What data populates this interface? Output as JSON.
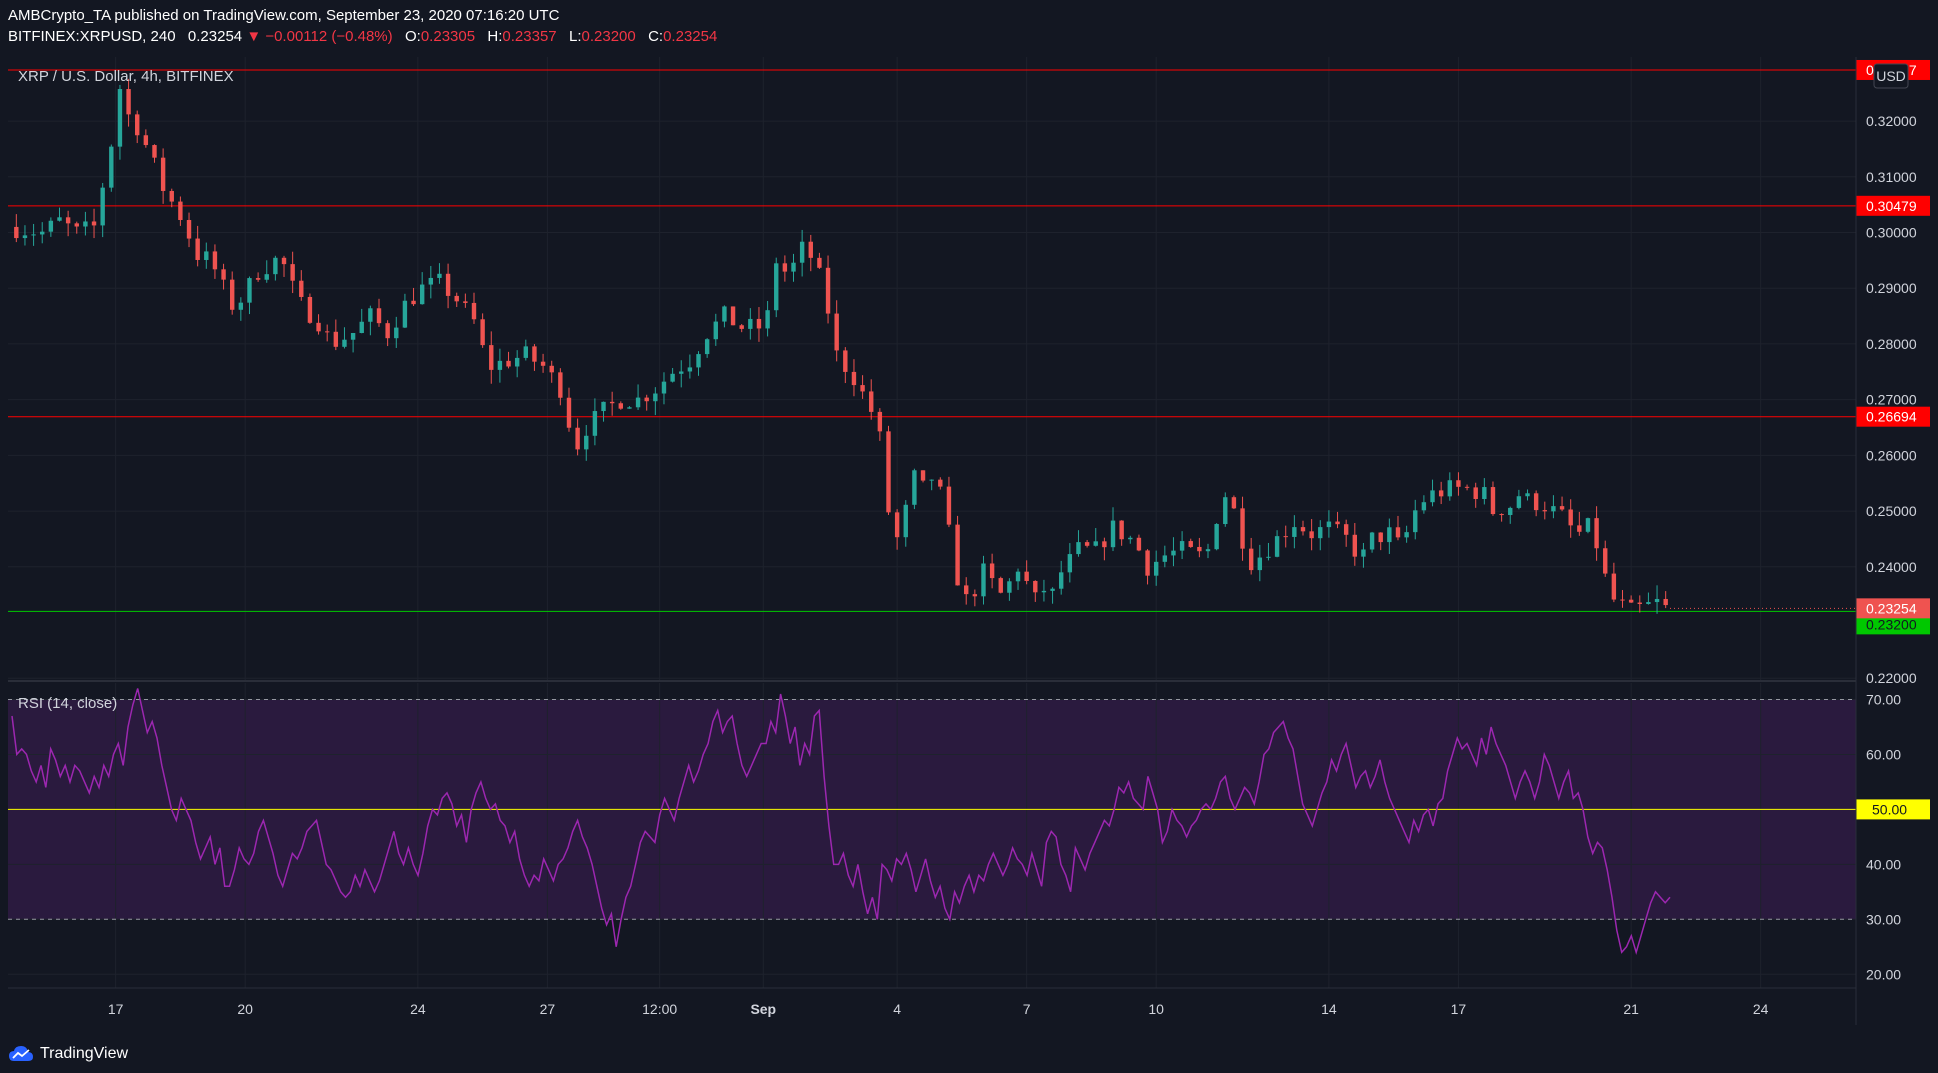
{
  "header": {
    "publisher_line": "AMBCrypto_TA published on TradingView.com, September 23, 2020 07:16:20 UTC",
    "symbol": "BITFINEX:XRPUSD, 240",
    "last": "0.23254",
    "change": "▼ −0.00112 (−0.48%)",
    "o_label": "O:",
    "o_val": "0.23305",
    "h_label": "H:",
    "h_val": "0.23357",
    "l_label": "L:",
    "l_val": "0.23200",
    "c_label": "C:",
    "c_val": "0.23254"
  },
  "colors": {
    "background": "#131722",
    "up": "#26a69a",
    "down": "#ef5350",
    "resistance": "#ff0000",
    "support": "#00c800",
    "rsi_line": "#9c27b0",
    "rsi_band": "#2a1a3e",
    "midline": "#ffff00"
  },
  "footer": {
    "brand": "TradingView"
  },
  "chart_data": [
    {
      "type": "candlestick",
      "title": "XRP / U.S. Dollar, 4h, BITFINEX",
      "currency_label": "USD",
      "ylim": [
        0.2195,
        0.3315
      ],
      "y_ticks": [
        "0.32000",
        "0.31000",
        "0.30000",
        "0.29000",
        "0.28000",
        "0.27000",
        "0.26000",
        "0.25000",
        "0.24000",
        "0.22000"
      ],
      "y_tick_values": [
        0.32,
        0.31,
        0.3,
        0.29,
        0.28,
        0.27,
        0.26,
        0.25,
        0.24,
        0.22
      ],
      "x_ticks": [
        "17",
        "20",
        "24",
        "27",
        "12:00",
        "Sep",
        "4",
        "7",
        "10",
        "14",
        "17",
        "21",
        "24"
      ],
      "x_tick_index": [
        24,
        54,
        94,
        124,
        150,
        174,
        205,
        235,
        265,
        305,
        335,
        375,
        405
      ],
      "horizontal_levels": [
        {
          "label": "0.32917",
          "value": 0.32917,
          "kind": "resistance"
        },
        {
          "label": "0.30479",
          "value": 0.30479,
          "kind": "resistance"
        },
        {
          "label": "0.26694",
          "value": 0.26694,
          "kind": "resistance"
        },
        {
          "label": "0.23200",
          "value": 0.232,
          "kind": "support"
        }
      ],
      "last_price": {
        "label": "0.23254",
        "value": 0.23254
      },
      "price_path": [
        [
          0,
          0.301
        ],
        [
          8,
          0.3
        ],
        [
          12,
          0.302
        ],
        [
          16,
          0.3
        ],
        [
          20,
          0.301
        ],
        [
          24,
          0.316
        ],
        [
          26,
          0.326
        ],
        [
          28,
          0.321
        ],
        [
          30,
          0.319
        ],
        [
          33,
          0.314
        ],
        [
          36,
          0.308
        ],
        [
          40,
          0.303
        ],
        [
          44,
          0.296
        ],
        [
          47,
          0.295
        ],
        [
          50,
          0.29
        ],
        [
          52,
          0.287
        ],
        [
          54,
          0.288
        ],
        [
          58,
          0.293
        ],
        [
          62,
          0.295
        ],
        [
          64,
          0.294
        ],
        [
          66,
          0.29
        ],
        [
          68,
          0.287
        ],
        [
          72,
          0.284
        ],
        [
          75,
          0.28
        ],
        [
          80,
          0.282
        ],
        [
          84,
          0.285
        ],
        [
          88,
          0.282
        ],
        [
          92,
          0.287
        ],
        [
          96,
          0.29
        ],
        [
          100,
          0.291
        ],
        [
          104,
          0.288
        ],
        [
          108,
          0.284
        ],
        [
          110,
          0.279
        ],
        [
          112,
          0.276
        ],
        [
          116,
          0.277
        ],
        [
          120,
          0.278
        ],
        [
          124,
          0.276
        ],
        [
          128,
          0.272
        ],
        [
          130,
          0.266
        ],
        [
          132,
          0.262
        ],
        [
          134,
          0.265
        ],
        [
          138,
          0.268
        ],
        [
          142,
          0.27
        ],
        [
          146,
          0.27
        ],
        [
          150,
          0.272
        ],
        [
          154,
          0.275
        ],
        [
          158,
          0.277
        ],
        [
          162,
          0.282
        ],
        [
          166,
          0.285
        ],
        [
          170,
          0.283
        ],
        [
          174,
          0.283
        ],
        [
          176,
          0.285
        ],
        [
          178,
          0.295
        ],
        [
          180,
          0.293
        ],
        [
          182,
          0.294
        ],
        [
          184,
          0.297
        ],
        [
          187,
          0.295
        ],
        [
          190,
          0.286
        ],
        [
          192,
          0.278
        ],
        [
          194,
          0.276
        ],
        [
          196,
          0.274
        ],
        [
          198,
          0.271
        ],
        [
          200,
          0.268
        ],
        [
          202,
          0.263
        ],
        [
          204,
          0.25
        ],
        [
          206,
          0.245
        ],
        [
          208,
          0.25
        ],
        [
          210,
          0.256
        ],
        [
          212,
          0.254
        ],
        [
          214,
          0.256
        ],
        [
          216,
          0.253
        ],
        [
          218,
          0.246
        ],
        [
          220,
          0.238
        ],
        [
          222,
          0.234
        ],
        [
          224,
          0.236
        ],
        [
          226,
          0.239
        ],
        [
          228,
          0.237
        ],
        [
          230,
          0.235
        ],
        [
          232,
          0.237
        ],
        [
          234,
          0.24
        ],
        [
          236,
          0.237
        ],
        [
          238,
          0.234
        ],
        [
          240,
          0.236
        ],
        [
          242,
          0.235
        ],
        [
          244,
          0.239
        ],
        [
          248,
          0.243
        ],
        [
          252,
          0.243
        ],
        [
          256,
          0.247
        ],
        [
          260,
          0.245
        ],
        [
          262,
          0.243
        ],
        [
          264,
          0.24
        ],
        [
          268,
          0.242
        ],
        [
          272,
          0.243
        ],
        [
          276,
          0.242
        ],
        [
          278,
          0.243
        ],
        [
          280,
          0.249
        ],
        [
          282,
          0.253
        ],
        [
          284,
          0.25
        ],
        [
          286,
          0.245
        ],
        [
          288,
          0.241
        ],
        [
          290,
          0.242
        ],
        [
          294,
          0.245
        ],
        [
          298,
          0.248
        ],
        [
          302,
          0.246
        ],
        [
          306,
          0.247
        ],
        [
          310,
          0.245
        ],
        [
          312,
          0.243
        ],
        [
          314,
          0.242
        ],
        [
          316,
          0.245
        ],
        [
          320,
          0.246
        ],
        [
          322,
          0.244
        ],
        [
          324,
          0.246
        ],
        [
          326,
          0.25
        ],
        [
          328,
          0.252
        ],
        [
          330,
          0.253
        ],
        [
          334,
          0.254
        ],
        [
          338,
          0.254
        ],
        [
          342,
          0.253
        ],
        [
          344,
          0.25
        ],
        [
          348,
          0.251
        ],
        [
          350,
          0.253
        ],
        [
          352,
          0.252
        ],
        [
          356,
          0.251
        ],
        [
          360,
          0.249
        ],
        [
          362,
          0.247
        ],
        [
          364,
          0.246
        ],
        [
          366,
          0.247
        ],
        [
          368,
          0.244
        ],
        [
          370,
          0.238
        ],
        [
          372,
          0.234
        ],
        [
          374,
          0.233
        ],
        [
          376,
          0.232
        ],
        [
          378,
          0.2325
        ],
        [
          380,
          0.233
        ],
        [
          382,
          0.2335
        ],
        [
          384,
          0.2325
        ]
      ]
    },
    {
      "type": "line",
      "title": "RSI (14, close)",
      "ylim": [
        17.5,
        73.0
      ],
      "y_ticks": [
        "70.00",
        "60.00",
        "50.00",
        "40.00",
        "30.00",
        "20.00"
      ],
      "y_tick_values": [
        70,
        60,
        50,
        40,
        30,
        20
      ],
      "bands": {
        "upper": 70,
        "lower": 30,
        "middle": 50
      },
      "middle_label": "50.00",
      "series": [
        {
          "name": "",
          "x_end_index": 384,
          "values": [
            67,
            60,
            61,
            60,
            57,
            55,
            58,
            54,
            61,
            59,
            56,
            58,
            55,
            58,
            57,
            55,
            53,
            56,
            54,
            58,
            56,
            60,
            62,
            58,
            65,
            69,
            72,
            68,
            64,
            66,
            63,
            58,
            54,
            50,
            48,
            52,
            50,
            48,
            44,
            41,
            43,
            45,
            40,
            43,
            36,
            36,
            39,
            43,
            41,
            40,
            42,
            46,
            48,
            45,
            42,
            38,
            36,
            39,
            42,
            41,
            43,
            46,
            47,
            48,
            44,
            40,
            39,
            37,
            35,
            34,
            35,
            38,
            36,
            39,
            37,
            35,
            37,
            40,
            43,
            46,
            42,
            40,
            43,
            40,
            38,
            42,
            47,
            50,
            49,
            52,
            53,
            51,
            47,
            49,
            44,
            50,
            53,
            55,
            52,
            50,
            51,
            48,
            47,
            44,
            46,
            41,
            38,
            36,
            38,
            37,
            41,
            39,
            37,
            40,
            41,
            43,
            46,
            48,
            45,
            43,
            40,
            36,
            32,
            29,
            31,
            25,
            30,
            34,
            36,
            40,
            44,
            46,
            45,
            44,
            49,
            52,
            50,
            48,
            52,
            55,
            58,
            55,
            57,
            60,
            62,
            66,
            68,
            64,
            66,
            67,
            62,
            58,
            56,
            58,
            60,
            62,
            62,
            66,
            64,
            71,
            67,
            62,
            65,
            58,
            62,
            60,
            67,
            68,
            56,
            47,
            40,
            40,
            42,
            38,
            36,
            40,
            35,
            31,
            34,
            30,
            40,
            39,
            37,
            41,
            40,
            42,
            39,
            35,
            38,
            41,
            37,
            34,
            36,
            32,
            30,
            35,
            33,
            36,
            38,
            35,
            38,
            37,
            40,
            42,
            40,
            38,
            40,
            43,
            41,
            40,
            38,
            42,
            39,
            36,
            44,
            46,
            45,
            40,
            38,
            35,
            43,
            41,
            39,
            42,
            44,
            46,
            48,
            47,
            50,
            54,
            53,
            55,
            52,
            51,
            50,
            56,
            53,
            50,
            44,
            46,
            50,
            48,
            47,
            45,
            47,
            48,
            50,
            51,
            50,
            52,
            55,
            56,
            52,
            50,
            52,
            54,
            53,
            51,
            55,
            60,
            61,
            64,
            65,
            66,
            63,
            61,
            56,
            51,
            49,
            47,
            50,
            53,
            55,
            59,
            57,
            60,
            62,
            58,
            54,
            56,
            57,
            54,
            56,
            59,
            55,
            52,
            50,
            48,
            46,
            44,
            48,
            46,
            49,
            50,
            47,
            51,
            52,
            57,
            60,
            63,
            61,
            62,
            60,
            58,
            63,
            60,
            65,
            62,
            60,
            58,
            55,
            52,
            55,
            57,
            55,
            52,
            55,
            60,
            58,
            55,
            52,
            55,
            57,
            52,
            53,
            50,
            45,
            42,
            44,
            43,
            39,
            34,
            28,
            24,
            25,
            27,
            24,
            27,
            30,
            33,
            35,
            34,
            33,
            34
          ]
        }
      ]
    }
  ]
}
